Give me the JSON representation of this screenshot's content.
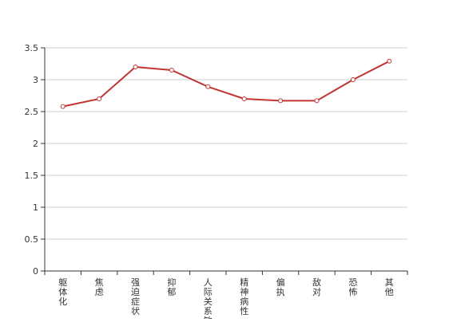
{
  "chart_data": {
    "type": "line",
    "title": "",
    "xlabel": "",
    "ylabel": "",
    "categories": [
      "躯体化",
      "焦虑",
      "强迫症状",
      "抑郁",
      "人际关系敏感",
      "精神病性",
      "偏执",
      "敌对",
      "恐怖",
      "其他"
    ],
    "series": [
      {
        "values": [
          2.58,
          2.7,
          3.2,
          3.15,
          2.89,
          2.7,
          2.67,
          2.67,
          3.0,
          3.29
        ],
        "color": "#c23531"
      }
    ],
    "ylim": [
      0,
      3.5
    ],
    "yticks": [
      "0",
      "0.5",
      "1",
      "1.5",
      "2",
      "2.5",
      "3",
      "3.5"
    ],
    "grid": true,
    "legend": "none"
  }
}
